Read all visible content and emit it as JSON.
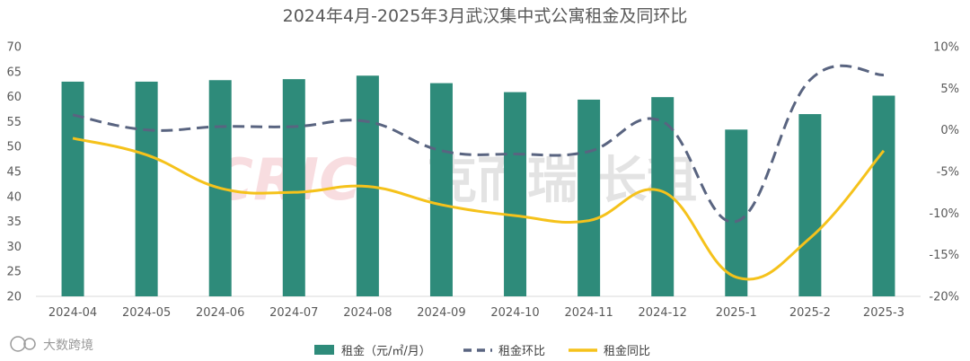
{
  "chart_data": {
    "type": "bar+line",
    "title": "2024年4月-2025年3月武汉集中式公寓租金及同环比",
    "categories": [
      "2024-04",
      "2024-05",
      "2024-06",
      "2024-07",
      "2024-08",
      "2024-09",
      "2024-10",
      "2024-11",
      "2024-12",
      "2025-1",
      "2025-2",
      "2025-3"
    ],
    "y_left": {
      "ticks": [
        "20",
        "25",
        "30",
        "35",
        "40",
        "45",
        "50",
        "55",
        "60",
        "65",
        "70"
      ],
      "ylim": [
        20,
        70
      ]
    },
    "y_right": {
      "ticks": [
        "-20%",
        "-15%",
        "-10%",
        "-5%",
        "0%",
        "5%",
        "10%"
      ],
      "ylim": [
        -20,
        10
      ]
    },
    "series": [
      {
        "name": "租金（元/㎡/月）",
        "kind": "bar",
        "axis": "left",
        "color": "#2e8b7a",
        "values": [
          63.0,
          63.0,
          63.3,
          63.5,
          64.2,
          62.7,
          60.9,
          59.4,
          59.9,
          53.4,
          56.5,
          60.2
        ]
      },
      {
        "name": "租金环比",
        "kind": "line",
        "axis": "right",
        "style": "dashed",
        "color": "#596480",
        "values": [
          1.8,
          0.0,
          0.4,
          0.4,
          1.0,
          -2.5,
          -2.9,
          -2.6,
          1.0,
          -11.0,
          6.0,
          6.6
        ]
      },
      {
        "name": "租金同比",
        "kind": "line",
        "axis": "right",
        "style": "solid",
        "color": "#f5c21b",
        "values": [
          -1.0,
          -3.0,
          -7.0,
          -7.5,
          -6.8,
          -9.0,
          -10.3,
          -10.9,
          -7.4,
          -17.7,
          -13.0,
          -2.5
        ]
      }
    ],
    "legend_position": "bottom",
    "grid": false
  },
  "watermarks": {
    "center_brand": "CRIC",
    "center_text": "克而瑞·长租",
    "corner_text": "大数跨境"
  }
}
